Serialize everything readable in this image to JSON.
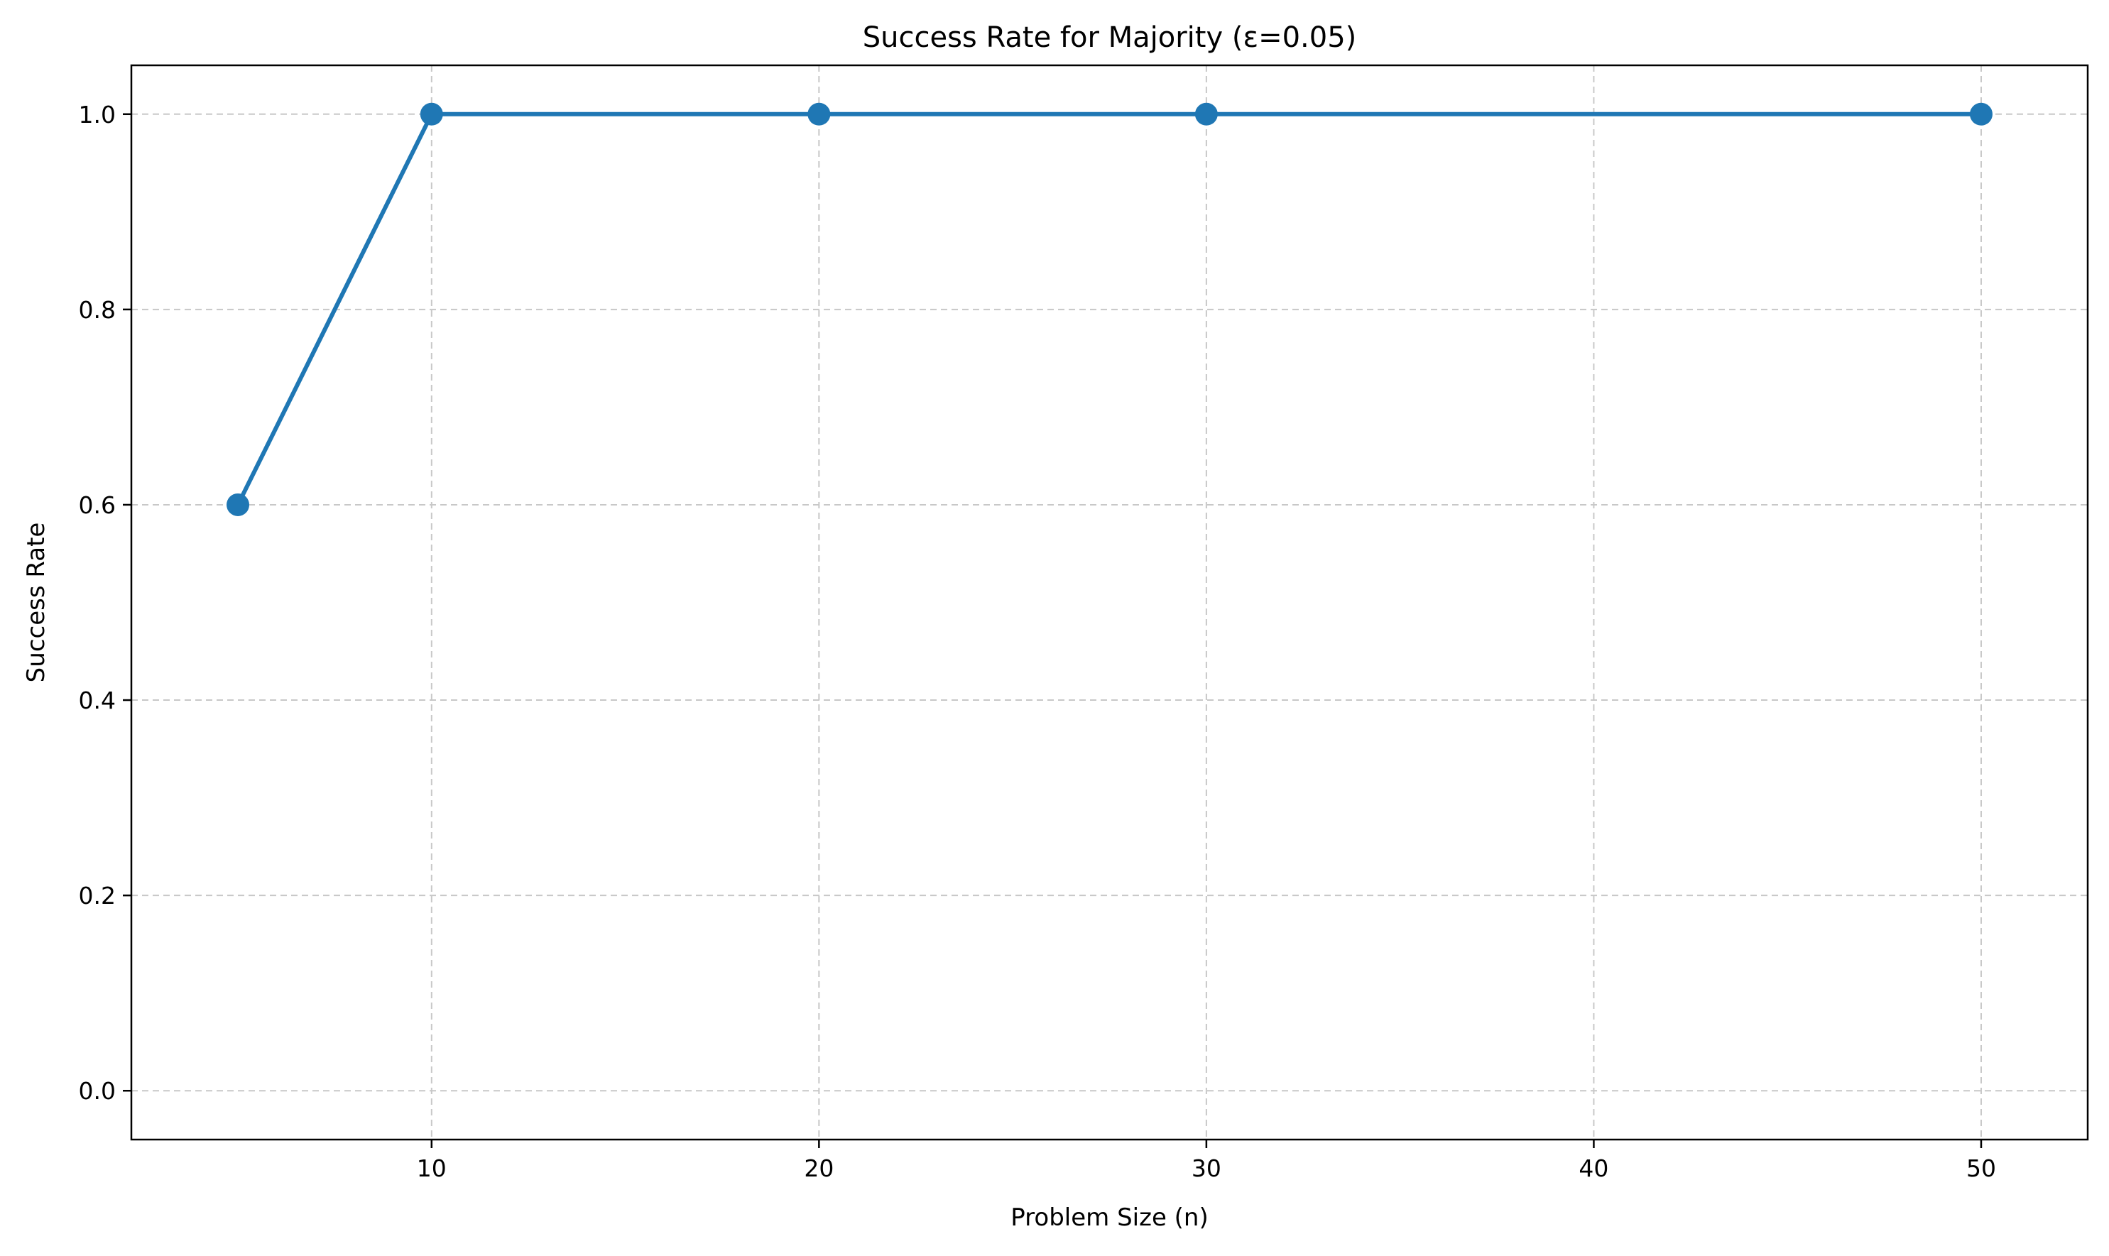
{
  "chart_data": {
    "type": "line",
    "title": "Success Rate for Majority (ε=0.05)",
    "xlabel": "Problem Size (n)",
    "ylabel": "Success Rate",
    "xlim": [
      2.25,
      52.75
    ],
    "ylim": [
      -0.05,
      1.05
    ],
    "x_ticks": [
      10,
      20,
      30,
      40,
      50
    ],
    "x_tick_labels": [
      "10",
      "20",
      "30",
      "40",
      "50"
    ],
    "y_ticks": [
      0.0,
      0.2,
      0.4,
      0.6,
      0.8,
      1.0
    ],
    "y_tick_labels": [
      "0.0",
      "0.2",
      "0.4",
      "0.6",
      "0.8",
      "1.0"
    ],
    "grid": true,
    "legend": "none",
    "x": [
      5,
      10,
      20,
      30,
      50
    ],
    "series": [
      {
        "values": [
          0.6,
          1.0,
          1.0,
          1.0,
          1.0
        ],
        "color": "#1f77b4",
        "marker": "circle"
      }
    ],
    "grid_color": "#c8c8c8",
    "axis_color": "#000000"
  }
}
